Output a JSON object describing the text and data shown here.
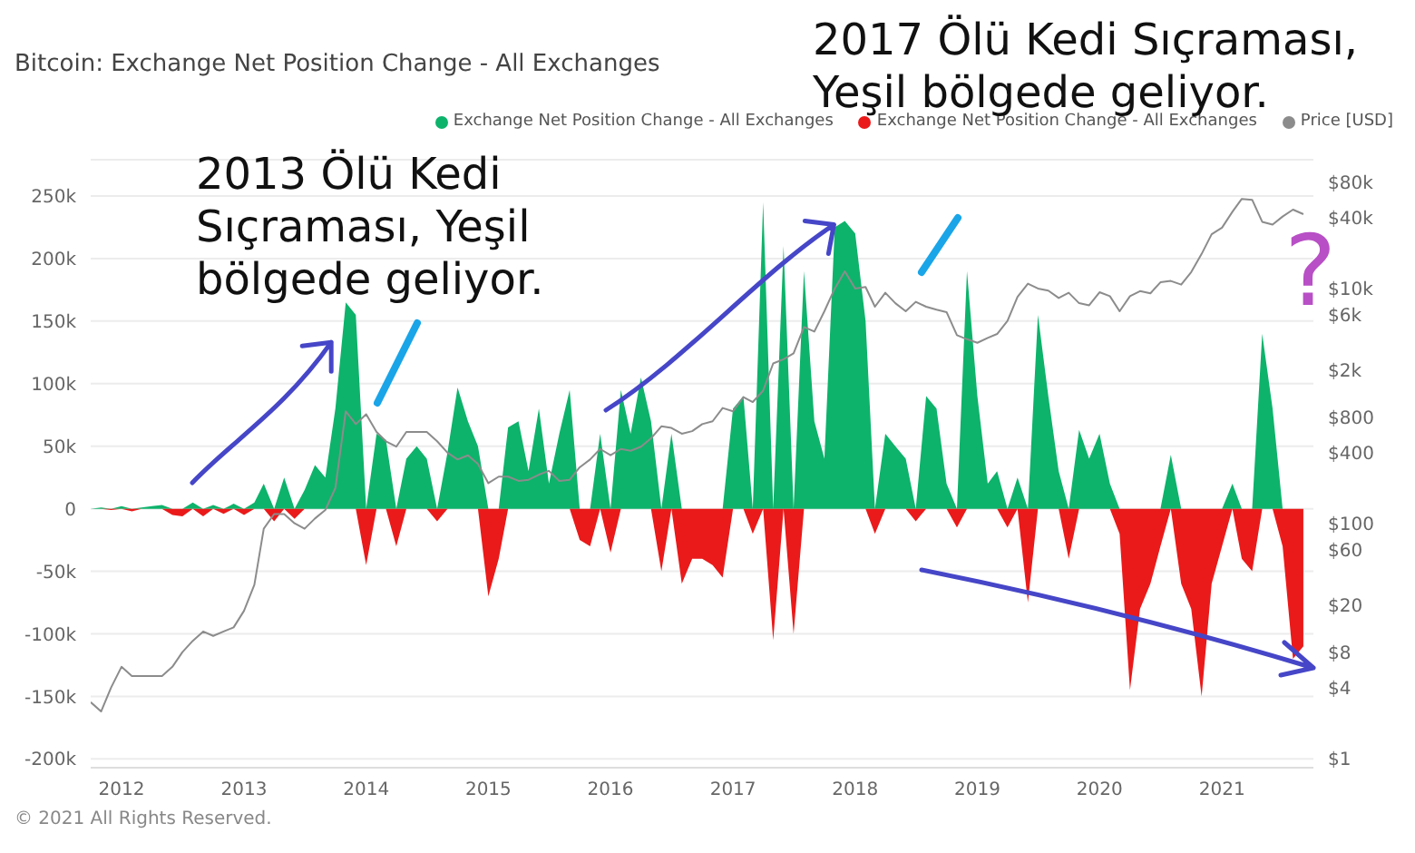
{
  "chart_data": {
    "type": "area",
    "title": "Bitcoin: Exchange Net Position Change - All Exchanges",
    "annotations": [
      {
        "text": "2013 Ölü Kedi Sıçraması, Yeşil bölgede geliyor.",
        "x": "2013-11",
        "y": 165000
      },
      {
        "text": "2017 Ölü Kedi Sıçraması, Yeşil bölgede geliyor.",
        "x": "2017-12",
        "y": 230000
      },
      "?",
      "© 2021 All Rights Reserved."
    ],
    "x": [
      "2011-10",
      "2011-11",
      "2011-12",
      "2012-01",
      "2012-02",
      "2012-03",
      "2012-04",
      "2012-05",
      "2012-06",
      "2012-07",
      "2012-08",
      "2012-09",
      "2012-10",
      "2012-11",
      "2012-12",
      "2013-01",
      "2013-02",
      "2013-03",
      "2013-04",
      "2013-05",
      "2013-06",
      "2013-07",
      "2013-08",
      "2013-09",
      "2013-10",
      "2013-11",
      "2013-12",
      "2014-01",
      "2014-02",
      "2014-03",
      "2014-04",
      "2014-05",
      "2014-06",
      "2014-07",
      "2014-08",
      "2014-09",
      "2014-10",
      "2014-11",
      "2014-12",
      "2015-01",
      "2015-02",
      "2015-03",
      "2015-04",
      "2015-05",
      "2015-06",
      "2015-07",
      "2015-08",
      "2015-09",
      "2015-10",
      "2015-11",
      "2015-12",
      "2016-01",
      "2016-02",
      "2016-03",
      "2016-04",
      "2016-05",
      "2016-06",
      "2016-07",
      "2016-08",
      "2016-09",
      "2016-10",
      "2016-11",
      "2016-12",
      "2017-01",
      "2017-02",
      "2017-03",
      "2017-04",
      "2017-05",
      "2017-06",
      "2017-07",
      "2017-08",
      "2017-09",
      "2017-10",
      "2017-11",
      "2017-12",
      "2018-01",
      "2018-02",
      "2018-03",
      "2018-04",
      "2018-05",
      "2018-06",
      "2018-07",
      "2018-08",
      "2018-09",
      "2018-10",
      "2018-11",
      "2018-12",
      "2019-01",
      "2019-02",
      "2019-03",
      "2019-04",
      "2019-05",
      "2019-06",
      "2019-07",
      "2019-08",
      "2019-09",
      "2019-10",
      "2019-11",
      "2019-12",
      "2020-01",
      "2020-02",
      "2020-03",
      "2020-04",
      "2020-05",
      "2020-06",
      "2020-07",
      "2020-08",
      "2020-09",
      "2020-10",
      "2020-11",
      "2020-12",
      "2021-01",
      "2021-02",
      "2021-03",
      "2021-04",
      "2021-05",
      "2021-06",
      "2021-07",
      "2021-08",
      "2021-09"
    ],
    "series": [
      {
        "name": "Exchange Net Position Change - All Exchanges",
        "color": "#0db36b",
        "values": [
          0,
          1000,
          0,
          2000,
          0,
          1000,
          2000,
          3000,
          0,
          0,
          5000,
          0,
          3000,
          0,
          4000,
          0,
          5000,
          20000,
          0,
          25000,
          0,
          15000,
          35000,
          25000,
          80000,
          165000,
          155000,
          0,
          60000,
          55000,
          0,
          40000,
          50000,
          40000,
          0,
          45000,
          97000,
          70000,
          50000,
          0,
          0,
          65000,
          70000,
          30000,
          80000,
          20000,
          60000,
          95000,
          0,
          0,
          60000,
          0,
          95000,
          60000,
          105000,
          70000,
          0,
          60000,
          0,
          0,
          0,
          0,
          0,
          80000,
          90000,
          0,
          245000,
          0,
          210000,
          0,
          190000,
          70000,
          40000,
          225000,
          230000,
          220000,
          150000,
          0,
          60000,
          50000,
          40000,
          0,
          90000,
          80000,
          20000,
          0,
          190000,
          90000,
          20000,
          30000,
          0,
          25000,
          0,
          155000,
          90000,
          30000,
          0,
          63000,
          40000,
          60000,
          20000,
          0,
          0,
          0,
          0,
          0,
          43000,
          0,
          0,
          0,
          0,
          0,
          20000,
          0,
          0,
          140000,
          80000,
          0,
          0,
          0
        ]
      },
      {
        "name": "Exchange Net Position Change - All Exchanges",
        "color": "#ea1a1a",
        "values": [
          0,
          0,
          -1000,
          0,
          -2000,
          0,
          0,
          0,
          -5000,
          -6000,
          0,
          -6000,
          0,
          -4000,
          0,
          -5000,
          0,
          0,
          -10000,
          0,
          -8000,
          0,
          0,
          0,
          0,
          0,
          0,
          -45000,
          0,
          0,
          -30000,
          0,
          0,
          0,
          -10000,
          0,
          0,
          0,
          0,
          -70000,
          -40000,
          0,
          0,
          0,
          0,
          0,
          0,
          0,
          -25000,
          -30000,
          0,
          -35000,
          0,
          0,
          0,
          0,
          -50000,
          0,
          -60000,
          -40000,
          -40000,
          -45000,
          -55000,
          0,
          0,
          -20000,
          0,
          -105000,
          0,
          -100000,
          0,
          0,
          0,
          0,
          0,
          0,
          0,
          -20000,
          0,
          0,
          0,
          -10000,
          0,
          0,
          0,
          -15000,
          0,
          0,
          0,
          0,
          -15000,
          0,
          -75000,
          0,
          0,
          0,
          -40000,
          0,
          0,
          0,
          0,
          -20000,
          -145000,
          -80000,
          -60000,
          -30000,
          0,
          -60000,
          -80000,
          -150000,
          -60000,
          -30000,
          0,
          -40000,
          -50000,
          0,
          0,
          -30000,
          -120000,
          -110000
        ]
      },
      {
        "name": "Price [USD]",
        "color": "#8c8c8c",
        "type": "line",
        "axis": "y2",
        "values": [
          3,
          2.5,
          4,
          6,
          5,
          5,
          5,
          5,
          6,
          8,
          10,
          12,
          11,
          12,
          13,
          18,
          30,
          90,
          120,
          120,
          100,
          90,
          110,
          130,
          200,
          900,
          700,
          850,
          600,
          500,
          450,
          600,
          600,
          600,
          500,
          400,
          350,
          380,
          320,
          220,
          250,
          250,
          230,
          235,
          260,
          280,
          230,
          235,
          300,
          350,
          430,
          380,
          430,
          415,
          450,
          530,
          670,
          650,
          580,
          610,
          700,
          740,
          960,
          900,
          1190,
          1080,
          1350,
          2300,
          2500,
          2800,
          4700,
          4300,
          6400,
          10000,
          14000,
          10000,
          10300,
          7000,
          9200,
          7500,
          6400,
          7700,
          7000,
          6600,
          6300,
          4000,
          3700,
          3450,
          3800,
          4100,
          5300,
          8500,
          11000,
          10000,
          9600,
          8300,
          9200,
          7500,
          7200,
          9300,
          8600,
          6400,
          8600,
          9500,
          9100,
          11300,
          11600,
          10800,
          13800,
          19700,
          29000,
          33000,
          45000,
          58000,
          57000,
          37000,
          35000,
          41000,
          47000,
          43000
        ]
      }
    ],
    "xlim": [
      "2011-10",
      "2021-10"
    ],
    "xticks": [
      "2012",
      "2013",
      "2014",
      "2015",
      "2016",
      "2017",
      "2018",
      "2019",
      "2020",
      "2021"
    ],
    "ylim": [
      -207000,
      279000
    ],
    "yticks": [
      {
        "value": -200000,
        "label": "-200k"
      },
      {
        "value": -150000,
        "label": "-150k"
      },
      {
        "value": -100000,
        "label": "-100k"
      },
      {
        "value": -50000,
        "label": "-50k"
      },
      0,
      {
        "value": 50000,
        "label": "50k"
      },
      {
        "value": 100000,
        "label": "100k"
      },
      {
        "value": 150000,
        "label": "150k"
      },
      {
        "value": 200000,
        "label": "200k"
      },
      {
        "value": 250000,
        "label": "250k"
      }
    ],
    "y2lim": [
      0.83,
      125000
    ],
    "y2ticks": [
      {
        "value": 1,
        "label": "$1"
      },
      {
        "value": 4,
        "label": "$4"
      },
      {
        "value": 8,
        "label": "$8"
      },
      {
        "value": 20,
        "label": "$20"
      },
      {
        "value": 60,
        "label": "$60"
      },
      {
        "value": 100,
        "label": "$100"
      },
      {
        "value": 400,
        "label": "$400"
      },
      {
        "value": 800,
        "label": "$800"
      },
      {
        "value": 2000,
        "label": "$2k"
      },
      {
        "value": 6000,
        "label": "$6k"
      },
      {
        "value": 10000,
        "label": "$10k"
      },
      {
        "value": 40000,
        "label": "$40k"
      },
      {
        "value": 80000,
        "label": "$80k"
      }
    ],
    "log": "y2",
    "grid": "y",
    "legend": "top right",
    "marker": "none",
    "line_style": "solid"
  }
}
